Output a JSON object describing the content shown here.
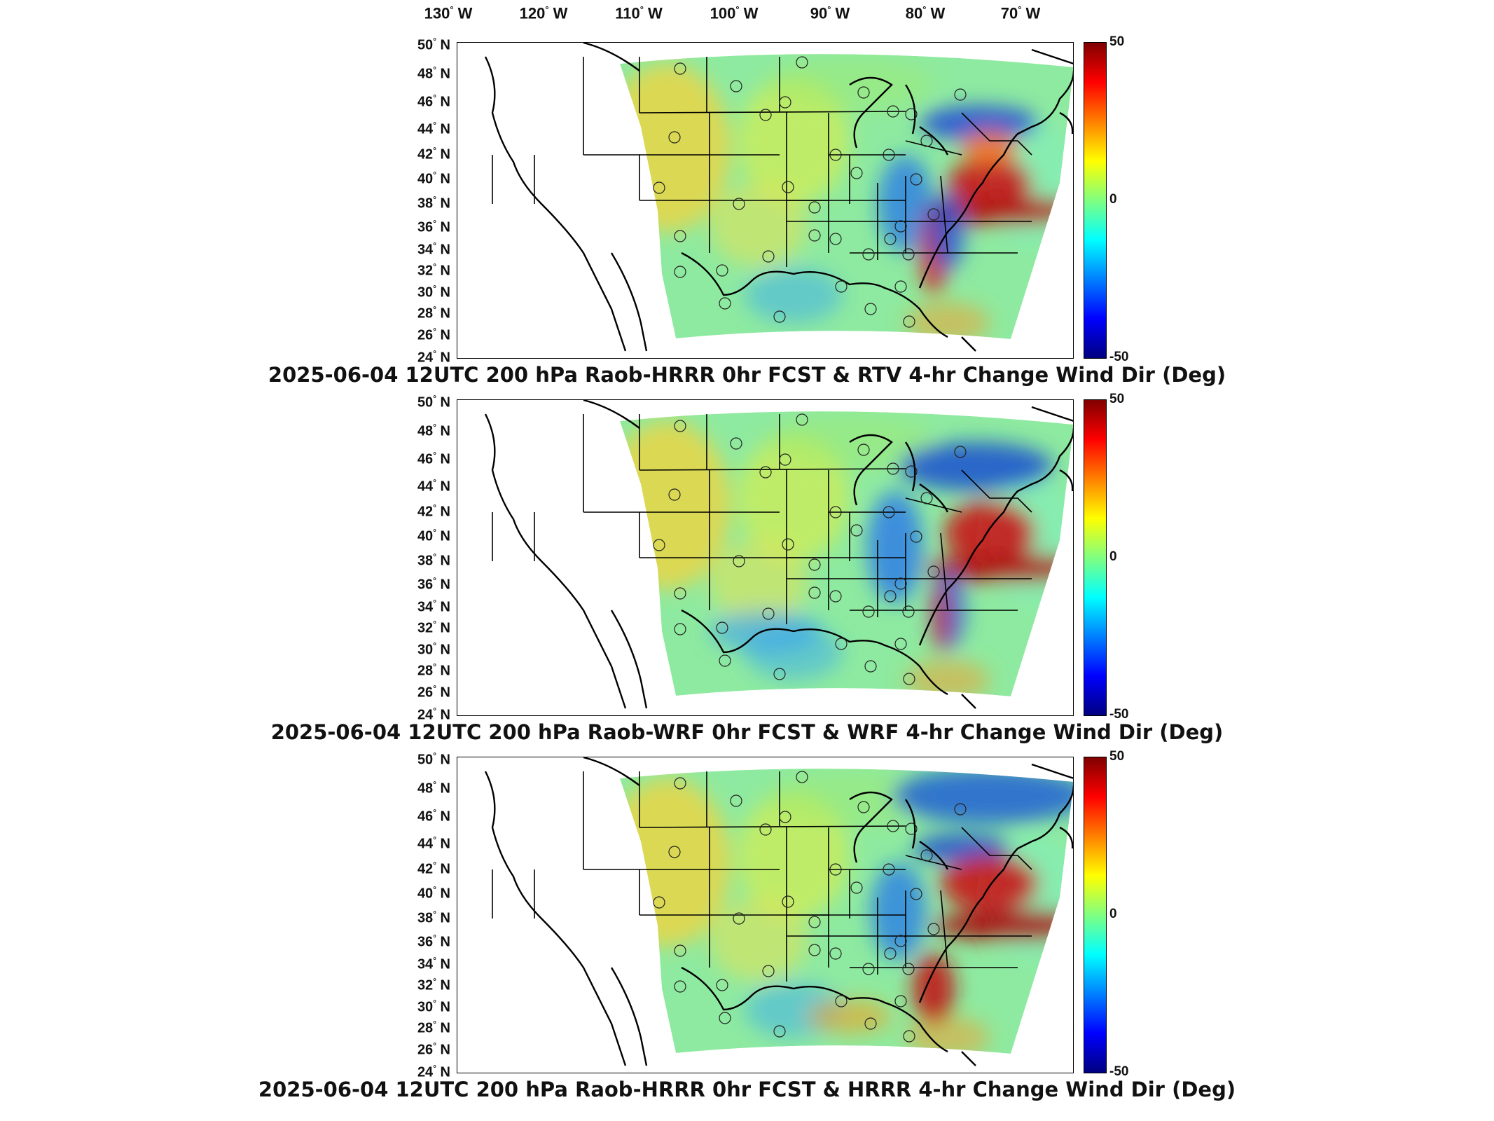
{
  "lon_labels": [
    {
      "deg": "130",
      "hem": "W"
    },
    {
      "deg": "120",
      "hem": "W"
    },
    {
      "deg": "110",
      "hem": "W"
    },
    {
      "deg": "100",
      "hem": "W"
    },
    {
      "deg": "90",
      "hem": "W"
    },
    {
      "deg": "80",
      "hem": "W"
    },
    {
      "deg": "70",
      "hem": "W"
    }
  ],
  "lat_labels": [
    "50",
    "48",
    "46",
    "44",
    "42",
    "40",
    "38",
    "36",
    "34",
    "32",
    "30",
    "28",
    "26",
    "24"
  ],
  "lat_hem": "N",
  "colorbar": {
    "max": "50",
    "mid": "0",
    "min": "-50"
  },
  "panels": [
    {
      "caption": "2025-06-04 12UTC 200 hPa Raob-HRRR 0hr FCST & RTV 4-hr Change Wind Dir (Deg)"
    },
    {
      "caption": "2025-06-04 12UTC 200 hPa Raob-WRF 0hr FCST & WRF 4-hr Change Wind Dir (Deg)"
    },
    {
      "caption": "2025-06-04 12UTC 200 hPa Raob-HRRR 0hr FCST & HRRR 4-hr Change Wind Dir (Deg)"
    }
  ]
}
